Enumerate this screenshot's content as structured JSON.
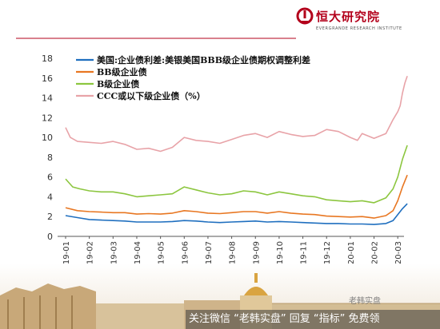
{
  "brand": {
    "name": "恒大研究院",
    "sub": "EVERGRANDE RESEARCH INSTITUTE"
  },
  "banner": {
    "text": "关注微信 “老韩实盘” 回复 “指标” 免费领"
  },
  "watermark": "老韩实盘",
  "colors": {
    "series1": "#1f6fbf",
    "series2": "#e87722",
    "series3": "#8cc63f",
    "series4": "#e8a3a8",
    "brand": "#b3001b"
  },
  "chart_data": {
    "type": "line",
    "ylim": [
      0,
      18
    ],
    "yticks": [
      0,
      2,
      4,
      6,
      8,
      10,
      12,
      14,
      16,
      18
    ],
    "xticks": [
      "2019-01",
      "2019-02",
      "2019-03",
      "2019-04",
      "2019-05",
      "2019-06",
      "2019-07",
      "2019-08",
      "2019-09",
      "2019-10",
      "2019-11",
      "2019-12",
      "2020-01",
      "2020-02",
      "2020-03"
    ],
    "legend_position": "top-left",
    "grid": false,
    "series": [
      {
        "name": "美国:企业债利差:美银美国BBB级企业债期权调整利差",
        "color": "#1f6fbf",
        "points": [
          [
            0,
            2.1
          ],
          [
            0.5,
            1.9
          ],
          [
            1,
            1.7
          ],
          [
            1.5,
            1.65
          ],
          [
            2,
            1.6
          ],
          [
            2.5,
            1.55
          ],
          [
            3,
            1.45
          ],
          [
            3.5,
            1.45
          ],
          [
            4,
            1.45
          ],
          [
            4.5,
            1.5
          ],
          [
            5,
            1.6
          ],
          [
            5.5,
            1.55
          ],
          [
            6,
            1.45
          ],
          [
            6.5,
            1.4
          ],
          [
            7,
            1.45
          ],
          [
            7.5,
            1.5
          ],
          [
            8,
            1.55
          ],
          [
            8.5,
            1.45
          ],
          [
            9,
            1.5
          ],
          [
            9.5,
            1.45
          ],
          [
            10,
            1.4
          ],
          [
            10.5,
            1.35
          ],
          [
            11,
            1.3
          ],
          [
            11.5,
            1.3
          ],
          [
            12,
            1.25
          ],
          [
            12.5,
            1.25
          ],
          [
            13,
            1.2
          ],
          [
            13.5,
            1.3
          ],
          [
            13.8,
            1.6
          ],
          [
            14,
            2.2
          ],
          [
            14.2,
            2.8
          ],
          [
            14.4,
            3.3
          ]
        ]
      },
      {
        "name": "BB级企业债",
        "color": "#e87722",
        "points": [
          [
            0,
            2.9
          ],
          [
            0.5,
            2.6
          ],
          [
            1,
            2.5
          ],
          [
            1.5,
            2.45
          ],
          [
            2,
            2.4
          ],
          [
            2.5,
            2.4
          ],
          [
            3,
            2.25
          ],
          [
            3.5,
            2.3
          ],
          [
            4,
            2.25
          ],
          [
            4.5,
            2.35
          ],
          [
            5,
            2.6
          ],
          [
            5.5,
            2.5
          ],
          [
            6,
            2.35
          ],
          [
            6.5,
            2.3
          ],
          [
            7,
            2.4
          ],
          [
            7.5,
            2.5
          ],
          [
            8,
            2.5
          ],
          [
            8.5,
            2.35
          ],
          [
            9,
            2.5
          ],
          [
            9.5,
            2.35
          ],
          [
            10,
            2.25
          ],
          [
            10.5,
            2.2
          ],
          [
            11,
            2.05
          ],
          [
            11.5,
            2.0
          ],
          [
            12,
            1.95
          ],
          [
            12.5,
            2.0
          ],
          [
            13,
            1.85
          ],
          [
            13.5,
            2.1
          ],
          [
            13.8,
            2.6
          ],
          [
            14,
            3.6
          ],
          [
            14.2,
            5.0
          ],
          [
            14.4,
            6.2
          ]
        ]
      },
      {
        "name": "B级企业债",
        "color": "#8cc63f",
        "points": [
          [
            0,
            5.8
          ],
          [
            0.3,
            5.0
          ],
          [
            0.6,
            4.8
          ],
          [
            1,
            4.6
          ],
          [
            1.5,
            4.5
          ],
          [
            2,
            4.5
          ],
          [
            2.5,
            4.3
          ],
          [
            3,
            4.0
          ],
          [
            3.5,
            4.1
          ],
          [
            4,
            4.2
          ],
          [
            4.5,
            4.3
          ],
          [
            5,
            5.0
          ],
          [
            5.5,
            4.7
          ],
          [
            6,
            4.4
          ],
          [
            6.5,
            4.2
          ],
          [
            7,
            4.3
          ],
          [
            7.5,
            4.6
          ],
          [
            8,
            4.5
          ],
          [
            8.5,
            4.2
          ],
          [
            9,
            4.5
          ],
          [
            9.5,
            4.3
          ],
          [
            10,
            4.1
          ],
          [
            10.5,
            4.0
          ],
          [
            11,
            3.7
          ],
          [
            11.5,
            3.6
          ],
          [
            12,
            3.5
          ],
          [
            12.5,
            3.6
          ],
          [
            13,
            3.4
          ],
          [
            13.5,
            3.9
          ],
          [
            13.8,
            4.8
          ],
          [
            14,
            6.0
          ],
          [
            14.2,
            7.8
          ],
          [
            14.4,
            9.2
          ]
        ]
      },
      {
        "name": "CCC或以下级企业债（%）",
        "color": "#e8a3a8",
        "points": [
          [
            0,
            11.0
          ],
          [
            0.2,
            10.0
          ],
          [
            0.5,
            9.6
          ],
          [
            1,
            9.5
          ],
          [
            1.5,
            9.4
          ],
          [
            2,
            9.6
          ],
          [
            2.5,
            9.3
          ],
          [
            3,
            8.8
          ],
          [
            3.5,
            8.9
          ],
          [
            4,
            8.6
          ],
          [
            4.5,
            9.0
          ],
          [
            5,
            10.0
          ],
          [
            5.5,
            9.7
          ],
          [
            6,
            9.6
          ],
          [
            6.5,
            9.4
          ],
          [
            7,
            9.8
          ],
          [
            7.5,
            10.2
          ],
          [
            8,
            10.4
          ],
          [
            8.5,
            10.0
          ],
          [
            9,
            10.6
          ],
          [
            9.5,
            10.3
          ],
          [
            10,
            10.1
          ],
          [
            10.5,
            10.2
          ],
          [
            11,
            10.8
          ],
          [
            11.5,
            10.6
          ],
          [
            12,
            10.0
          ],
          [
            12.3,
            9.7
          ],
          [
            12.5,
            10.4
          ],
          [
            13,
            9.9
          ],
          [
            13.5,
            10.4
          ],
          [
            13.8,
            11.8
          ],
          [
            14,
            12.6
          ],
          [
            14.1,
            13.2
          ],
          [
            14.2,
            14.5
          ],
          [
            14.3,
            15.5
          ],
          [
            14.4,
            16.2
          ]
        ]
      }
    ]
  }
}
